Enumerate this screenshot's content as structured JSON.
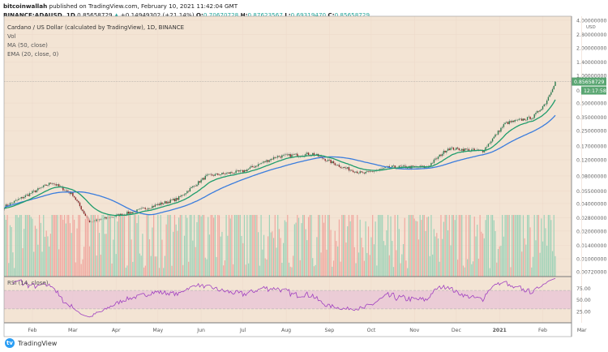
{
  "header": {
    "author": "bitcoinwallah",
    "published": "published on TradingView.com, February 10, 2021 11:42:04 GMT",
    "symbol": "BINANCE:ADAUSD, 1D",
    "last": "0.85658729",
    "change": "+0.14949302 (+21.14%)",
    "o_label": "O:",
    "open": "0.70670728",
    "h_label": "H:",
    "high": "0.87623567",
    "l_label": "L:",
    "low": "0.69319470",
    "c_label": "C:",
    "close": "0.85658729"
  },
  "legend": {
    "title": "Cardano / US Dollar (calculated by TradingView), 1D, BINANCE",
    "vol": "Vol",
    "ma": "MA (50, close)",
    "ema": "EMA (20, close, 0)",
    "rsi": "RSI (14, close)"
  },
  "footer": {
    "brand": "TradingView"
  },
  "colors": {
    "background": "#f3e4d4",
    "up": "#2e7d4f",
    "down": "#8b2a2a",
    "ema": "#1f9c6b",
    "ma": "#3b7ddd",
    "rsi": "#a040c0",
    "rsi_band": "#e8c6d6",
    "price_tag": "#5aa672"
  },
  "chart_data": {
    "type": "candlestick",
    "scale": "log",
    "currency": "USD",
    "price_axis": [
      "4.00000000",
      "2.80000000",
      "2.00000000",
      "1.40000000",
      "1.00000000",
      "0.50000000",
      "0.35000000",
      "0.25000000",
      "0.17000000",
      "0.12000000",
      "0.08000000",
      "0.05500000",
      "0.04000000",
      "0.02800000",
      "0.02000000",
      "0.01400000",
      "0.01000000",
      "0.00720000"
    ],
    "last_price_tag": "0.85658729",
    "countdown": "12:17:58",
    "countdown_prefix": "0.",
    "rsi_axis": [
      "75.00",
      "50.00",
      "25.00"
    ],
    "x_axis": [
      "Feb",
      "Mar",
      "Apr",
      "May",
      "Jun",
      "Jul",
      "Aug",
      "Sep",
      "Oct",
      "Nov",
      "Dec",
      "2021",
      "Feb",
      "Mar"
    ],
    "close_path": [
      {
        "date": "2020-01-12",
        "price": 0.037
      },
      {
        "date": "2020-02-15",
        "price": 0.068
      },
      {
        "date": "2020-03-01",
        "price": 0.05
      },
      {
        "date": "2020-03-13",
        "price": 0.025
      },
      {
        "date": "2020-04-15",
        "price": 0.033
      },
      {
        "date": "2020-05-15",
        "price": 0.045
      },
      {
        "date": "2020-06-05",
        "price": 0.08
      },
      {
        "date": "2020-07-01",
        "price": 0.09
      },
      {
        "date": "2020-07-25",
        "price": 0.13
      },
      {
        "date": "2020-08-20",
        "price": 0.14
      },
      {
        "date": "2020-09-10",
        "price": 0.1
      },
      {
        "date": "2020-09-25",
        "price": 0.085
      },
      {
        "date": "2020-10-15",
        "price": 0.1
      },
      {
        "date": "2020-11-10",
        "price": 0.1
      },
      {
        "date": "2020-11-25",
        "price": 0.16
      },
      {
        "date": "2020-12-20",
        "price": 0.15
      },
      {
        "date": "2021-01-05",
        "price": 0.3
      },
      {
        "date": "2021-01-25",
        "price": 0.35
      },
      {
        "date": "2021-02-03",
        "price": 0.5
      },
      {
        "date": "2021-02-10",
        "price": 0.857
      }
    ]
  }
}
